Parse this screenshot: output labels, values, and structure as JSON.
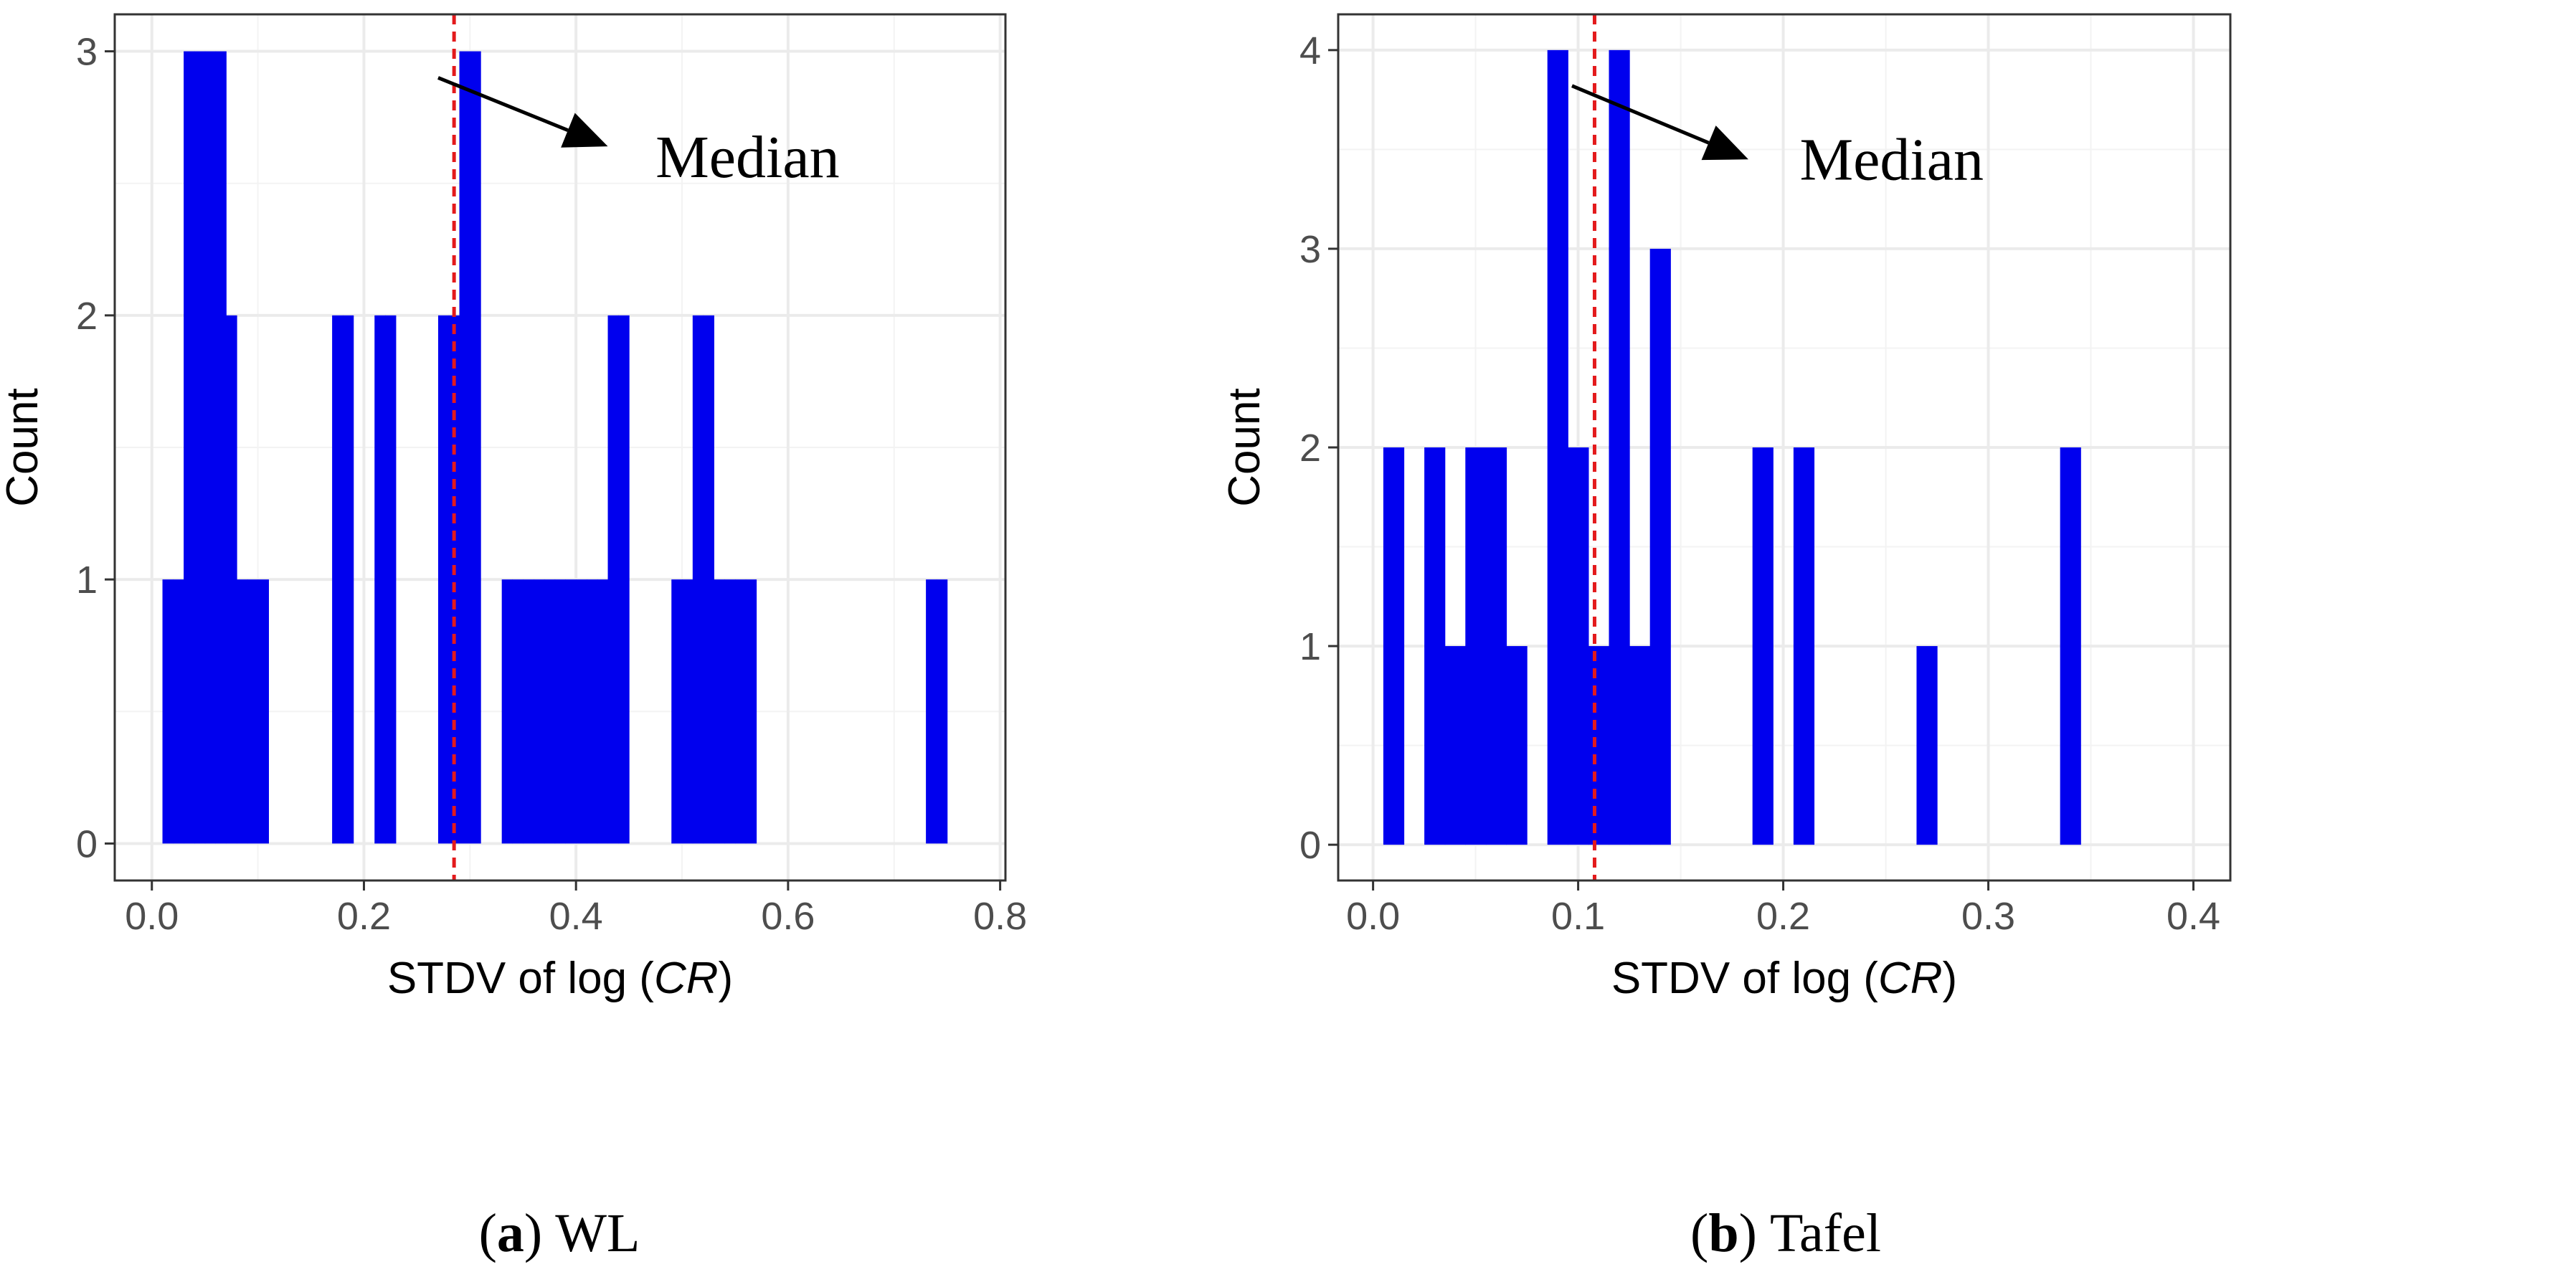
{
  "chart_data": [
    {
      "type": "bar",
      "subtype": "histogram",
      "panel_id": "a",
      "panel_name": "WL",
      "xlabel_prefix": "STDV of log (",
      "xlabel_italic": "CR",
      "xlabel_suffix": ")",
      "ylabel": "Count",
      "xlim": [
        -0.035,
        0.805
      ],
      "ylim": [
        -0.14,
        3.14
      ],
      "x_ticks": [
        0.0,
        0.2,
        0.4,
        0.6,
        0.8
      ],
      "x_tick_labels": [
        "0.0",
        "0.2",
        "0.4",
        "0.6",
        "0.8"
      ],
      "y_ticks": [
        0,
        1,
        2,
        3
      ],
      "y_tick_labels": [
        "0",
        "1",
        "2",
        "3"
      ],
      "bin_width": 0.01,
      "bins": [
        {
          "x0": 0.01,
          "count": 1
        },
        {
          "x0": 0.02,
          "count": 1
        },
        {
          "x0": 0.03,
          "count": 3
        },
        {
          "x0": 0.04,
          "count": 3
        },
        {
          "x0": 0.05,
          "count": 3
        },
        {
          "x0": 0.06,
          "count": 3
        },
        {
          "x0": 0.07,
          "count": 2
        },
        {
          "x0": 0.08,
          "count": 1
        },
        {
          "x0": 0.09,
          "count": 1
        },
        {
          "x0": 0.1,
          "count": 1
        },
        {
          "x0": 0.17,
          "count": 2
        },
        {
          "x0": 0.18,
          "count": 2
        },
        {
          "x0": 0.21,
          "count": 2
        },
        {
          "x0": 0.22,
          "count": 2
        },
        {
          "x0": 0.27,
          "count": 2
        },
        {
          "x0": 0.28,
          "count": 2
        },
        {
          "x0": 0.29,
          "count": 3
        },
        {
          "x0": 0.3,
          "count": 3
        },
        {
          "x0": 0.33,
          "count": 1
        },
        {
          "x0": 0.34,
          "count": 1
        },
        {
          "x0": 0.35,
          "count": 1
        },
        {
          "x0": 0.36,
          "count": 1
        },
        {
          "x0": 0.37,
          "count": 1
        },
        {
          "x0": 0.38,
          "count": 1
        },
        {
          "x0": 0.39,
          "count": 1
        },
        {
          "x0": 0.4,
          "count": 1
        },
        {
          "x0": 0.41,
          "count": 1
        },
        {
          "x0": 0.42,
          "count": 1
        },
        {
          "x0": 0.43,
          "count": 2
        },
        {
          "x0": 0.44,
          "count": 2
        },
        {
          "x0": 0.49,
          "count": 1
        },
        {
          "x0": 0.5,
          "count": 1
        },
        {
          "x0": 0.51,
          "count": 2
        },
        {
          "x0": 0.52,
          "count": 2
        },
        {
          "x0": 0.53,
          "count": 1
        },
        {
          "x0": 0.54,
          "count": 1
        },
        {
          "x0": 0.55,
          "count": 1
        },
        {
          "x0": 0.56,
          "count": 1
        },
        {
          "x0": 0.73,
          "count": 1
        },
        {
          "x0": 0.74,
          "count": 1
        }
      ],
      "median": 0.285,
      "annotation_text": "Median",
      "annotation_arrow_from": {
        "x": 0.27,
        "y": 2.9
      },
      "annotation_arrow_to": {
        "x": 0.43,
        "y": 2.64
      },
      "annotation_text_at": {
        "x": 0.475,
        "y": 2.6
      },
      "colors": {
        "bar": "#0000ee",
        "median": "#e31a1c"
      }
    },
    {
      "type": "bar",
      "subtype": "histogram",
      "panel_id": "b",
      "panel_name": "Tafel",
      "xlabel_prefix": "STDV of log (",
      "xlabel_italic": "CR",
      "xlabel_suffix": ")",
      "ylabel": "Count",
      "xlim": [
        -0.017,
        0.418
      ],
      "ylim": [
        -0.18,
        4.18
      ],
      "x_ticks": [
        0.0,
        0.1,
        0.2,
        0.3,
        0.4
      ],
      "x_tick_labels": [
        "0.0",
        "0.1",
        "0.2",
        "0.3",
        "0.4"
      ],
      "y_ticks": [
        0,
        1,
        2,
        3,
        4
      ],
      "y_tick_labels": [
        "0",
        "1",
        "2",
        "3",
        "4"
      ],
      "bin_width": 0.01,
      "bins": [
        {
          "x0": 0.005,
          "count": 2
        },
        {
          "x0": 0.025,
          "count": 2
        },
        {
          "x0": 0.035,
          "count": 1
        },
        {
          "x0": 0.045,
          "count": 2
        },
        {
          "x0": 0.055,
          "count": 2
        },
        {
          "x0": 0.065,
          "count": 1
        },
        {
          "x0": 0.085,
          "count": 4
        },
        {
          "x0": 0.095,
          "count": 2
        },
        {
          "x0": 0.105,
          "count": 1
        },
        {
          "x0": 0.115,
          "count": 4
        },
        {
          "x0": 0.125,
          "count": 1
        },
        {
          "x0": 0.135,
          "count": 3
        },
        {
          "x0": 0.185,
          "count": 2
        },
        {
          "x0": 0.205,
          "count": 2
        },
        {
          "x0": 0.265,
          "count": 1
        },
        {
          "x0": 0.335,
          "count": 2
        }
      ],
      "median": 0.108,
      "annotation_text": "Median",
      "annotation_arrow_from": {
        "x": 0.097,
        "y": 3.82
      },
      "annotation_arrow_to": {
        "x": 0.183,
        "y": 3.45
      },
      "annotation_text_at": {
        "x": 0.208,
        "y": 3.45
      },
      "colors": {
        "bar": "#0000ee",
        "median": "#e31a1c"
      }
    }
  ]
}
